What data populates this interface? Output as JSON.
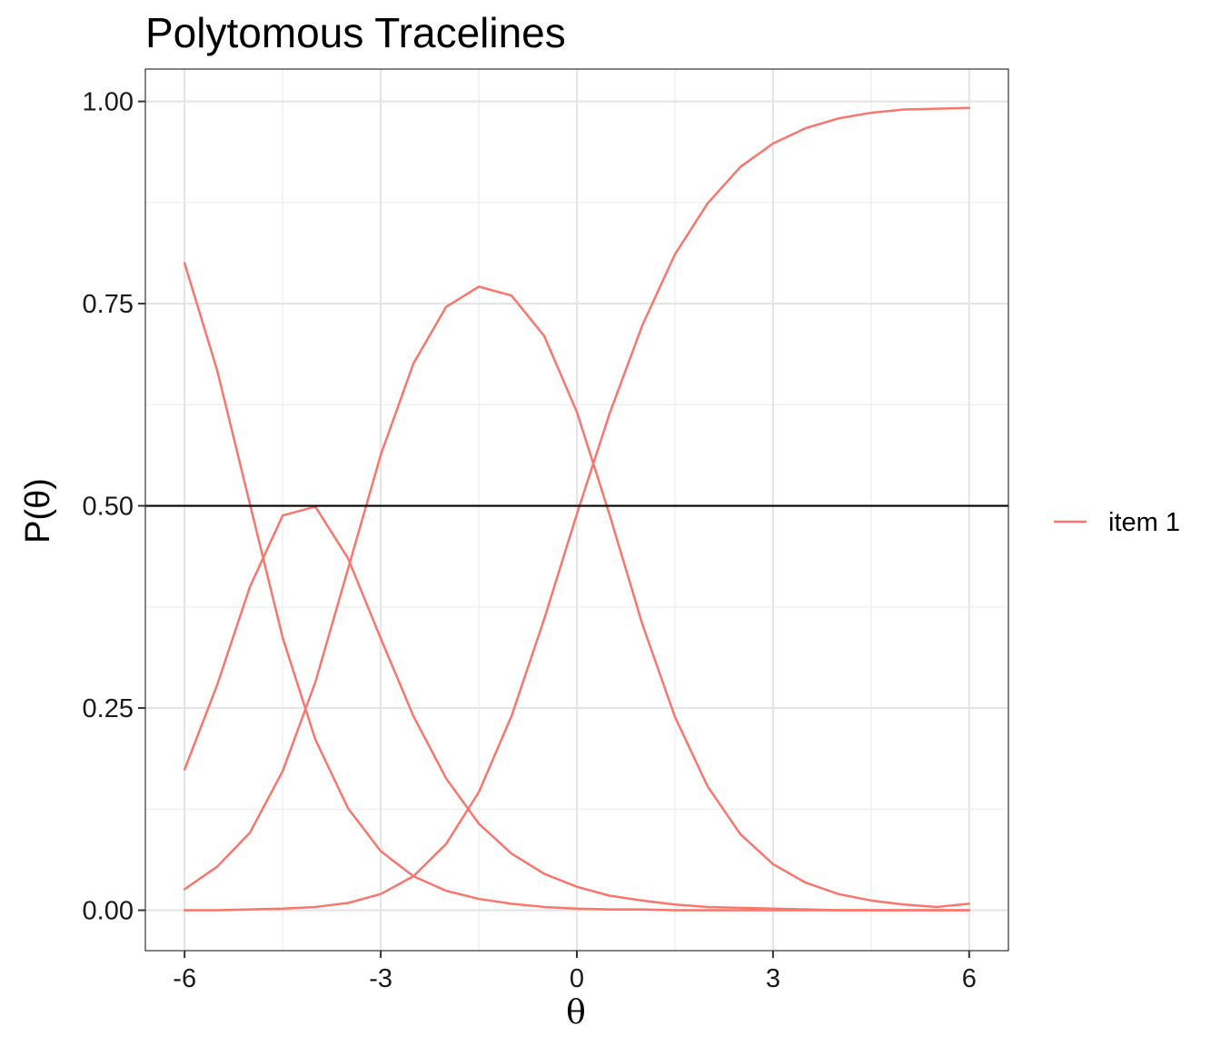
{
  "chart_data": {
    "type": "line",
    "title": "Polytomous Tracelines",
    "xlabel": "θ",
    "ylabel": "P(θ)",
    "xlim": [
      -6.6,
      6.6
    ],
    "ylim": [
      -0.05,
      1.04
    ],
    "x_ticks": [
      -6,
      -3,
      0,
      3,
      6
    ],
    "x_tick_labels": [
      "-6",
      "-3",
      "0",
      "3",
      "6"
    ],
    "x_minor_ticks": [
      -4.5,
      -1.5,
      1.5,
      4.5
    ],
    "y_ticks": [
      0,
      0.25,
      0.5,
      0.75,
      1
    ],
    "y_tick_labels": [
      "0.00",
      "0.25",
      "0.50",
      "0.75",
      "1.00"
    ],
    "y_minor_ticks": [
      0.125,
      0.375,
      0.625,
      0.875
    ],
    "grid": true,
    "legend": {
      "position": "right",
      "entries": [
        "item 1"
      ]
    },
    "reference_line": {
      "y": 0.5,
      "color": "#000000"
    },
    "x": [
      -6,
      -5.5,
      -5,
      -4.5,
      -4,
      -3.5,
      -3,
      -2.5,
      -2,
      -1.5,
      -1,
      -0.5,
      0,
      0.5,
      1,
      1.5,
      2,
      2.5,
      3,
      3.5,
      4,
      4.5,
      5,
      5.5,
      6
    ],
    "series": [
      {
        "name": "item 1",
        "color": "#F8766D",
        "values": [
          0.8,
          0.667,
          0.502,
          0.337,
          0.211,
          0.126,
          0.073,
          0.042,
          0.024,
          0.014,
          0.008,
          0.004,
          0.002,
          0.001,
          0.001,
          0.0,
          0.0,
          0.0,
          0.0,
          0.0,
          0.0,
          0.0,
          0.0,
          0.0,
          0.0
        ]
      },
      {
        "name": "item 1",
        "color": "#F8766D",
        "values": [
          0.174,
          0.279,
          0.4,
          0.488,
          0.499,
          0.435,
          0.336,
          0.24,
          0.163,
          0.107,
          0.07,
          0.045,
          0.029,
          0.018,
          0.012,
          0.007,
          0.004,
          0.003,
          0.002,
          0.001,
          0.0,
          0.0,
          0.0,
          0.0,
          0.0
        ]
      },
      {
        "name": "item 1",
        "color": "#F8766D",
        "values": [
          0.026,
          0.054,
          0.096,
          0.172,
          0.282,
          0.422,
          0.563,
          0.676,
          0.746,
          0.771,
          0.76,
          0.71,
          0.616,
          0.489,
          0.354,
          0.239,
          0.153,
          0.094,
          0.057,
          0.034,
          0.02,
          0.012,
          0.007,
          0.004,
          0.008
        ]
      },
      {
        "name": "item 1",
        "color": "#F8766D",
        "values": [
          0.0,
          0.0,
          0.001,
          0.002,
          0.004,
          0.009,
          0.02,
          0.042,
          0.082,
          0.146,
          0.24,
          0.36,
          0.49,
          0.614,
          0.723,
          0.811,
          0.874,
          0.919,
          0.948,
          0.967,
          0.979,
          0.986,
          0.99,
          0.991,
          0.992
        ]
      }
    ]
  }
}
